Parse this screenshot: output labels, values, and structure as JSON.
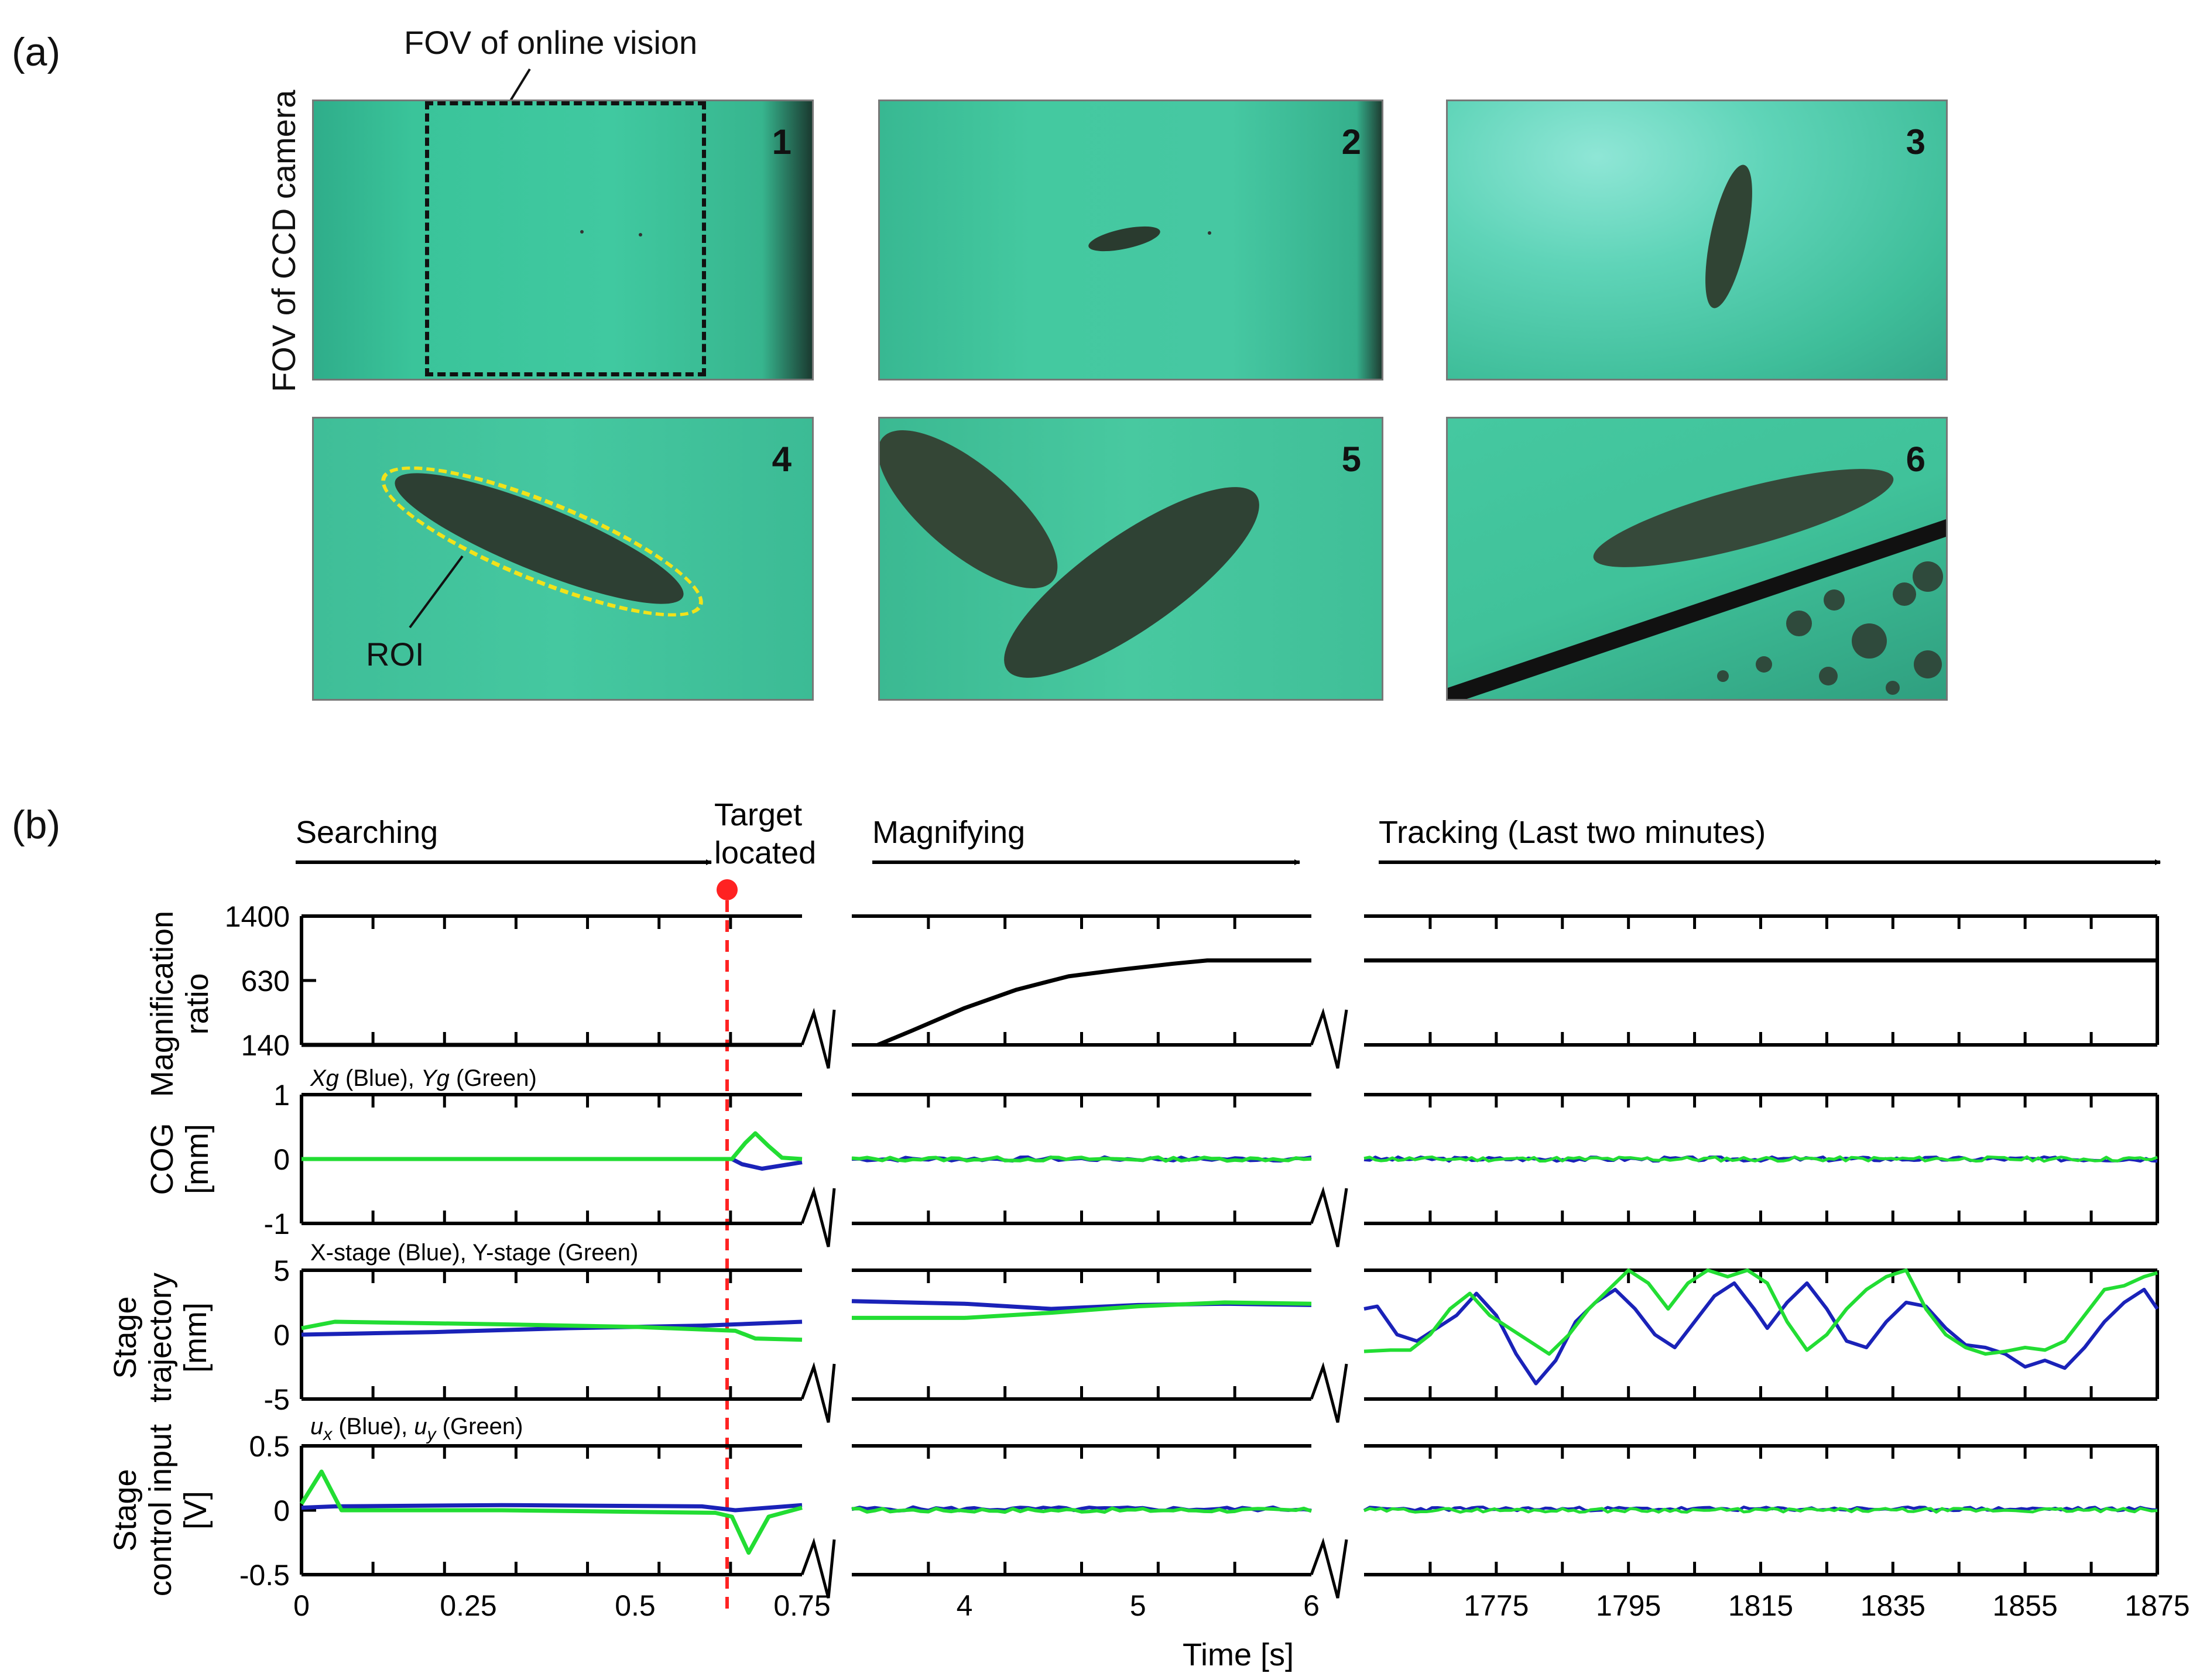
{
  "figure": {
    "panel_a_label": "(a)",
    "panel_b_label": "(b)"
  },
  "panel_a": {
    "fov_online_vision": "FOV of online vision",
    "fov_ccd_camera": "FOV of CCD camera",
    "roi_label": "ROI",
    "frames": [
      {
        "number": "1",
        "description": "empty field with dashed online vision FOV box"
      },
      {
        "number": "2",
        "description": "small paramecium far away"
      },
      {
        "number": "3",
        "description": "paramecium closer, vertical"
      },
      {
        "number": "4",
        "description": "paramecium magnified with ROI ellipse"
      },
      {
        "number": "5",
        "description": "two paramecia"
      },
      {
        "number": "6",
        "description": "paramecium near dark edge with droplets"
      }
    ]
  },
  "panel_b": {
    "phases": {
      "searching": "Searching",
      "target_line1": "Target",
      "target_line2": "located",
      "magnifying": "Magnifying",
      "tracking": "Tracking (Last two minutes)"
    },
    "xlabel": "Time [s]",
    "rows": [
      {
        "ylabel_line1": "Magnification",
        "ylabel_line2": "ratio",
        "legend": "",
        "ticks": [
          "1400",
          "630",
          "140"
        ]
      },
      {
        "ylabel_line1": "COG",
        "ylabel_line2": "[mm]",
        "legend_parts": [
          "Xg",
          " (Blue), ",
          "Yg",
          " (Green)"
        ],
        "ticks": [
          "1",
          "0",
          "-1"
        ]
      },
      {
        "ylabel_line1": "Stage",
        "ylabel_line2": "trajectory",
        "ylabel_line3": "[mm]",
        "legend": "X-stage (Blue), Y-stage (Green)",
        "ticks": [
          "5",
          "0",
          "-5"
        ]
      },
      {
        "ylabel_line1": "Stage",
        "ylabel_line2": "control input",
        "ylabel_line3": "[V]",
        "legend_parts": [
          "u",
          "x",
          " (Blue), ",
          "u",
          "y",
          " (Green)"
        ],
        "ticks": [
          "0.5",
          "0",
          "-0.5"
        ]
      }
    ],
    "x_segments": [
      {
        "ticks": [
          "0",
          "0.25",
          "0.5",
          "0.75"
        ]
      },
      {
        "ticks": [
          "4",
          "5",
          "6"
        ]
      },
      {
        "ticks": [
          "1775",
          "1795",
          "1815",
          "1835",
          "1855",
          "1875"
        ]
      }
    ],
    "colors": {
      "blue": "#1a22b8",
      "green": "#22dd33",
      "marker": "#ff2222",
      "black": "#000000"
    }
  },
  "chart_data": [
    {
      "type": "line",
      "title": "Magnification ratio",
      "ylabel": "Magnification ratio",
      "yticks": [
        140,
        630,
        1400
      ],
      "series": [
        {
          "name": "searching",
          "x": [
            0,
            0.75
          ],
          "y": [
            140,
            140
          ]
        },
        {
          "name": "magnifying",
          "x": [
            3.5,
            3.7,
            4.0,
            4.3,
            4.6,
            4.9,
            5.2,
            5.4,
            6
          ],
          "y": [
            140,
            250,
            420,
            560,
            680,
            760,
            830,
            870,
            870
          ]
        },
        {
          "name": "tracking",
          "x": [
            1755,
            1875
          ],
          "y": [
            870,
            870
          ]
        }
      ]
    },
    {
      "type": "line",
      "title": "COG",
      "ylabel": "COG [mm]",
      "ylim": [
        -1,
        1
      ],
      "series": [
        {
          "name": "Xg",
          "color": "blue",
          "note": "near zero, small negative dip after target located (~-0.15 at 0.69 s)"
        },
        {
          "name": "Yg",
          "color": "green",
          "note": "zero, peak ~0.4 at 0.68 s after target located, then near zero"
        }
      ]
    },
    {
      "type": "line",
      "title": "Stage trajectory",
      "ylabel": "Stage trajectory [mm]",
      "ylim": [
        -5,
        5
      ],
      "series": [
        {
          "name": "X-stage",
          "color": "blue",
          "note": "searching 0 to ~1; magnifying ~2.5 to ~2.3; tracking oscillates about -4 to 4"
        },
        {
          "name": "Y-stage",
          "color": "green",
          "note": "searching ~1 to ~-0.5; magnifying ~1.3 to ~2.4; tracking oscillates about -1.5 to 5"
        }
      ]
    },
    {
      "type": "line",
      "title": "Stage control input",
      "ylabel": "Stage control input [V]",
      "ylim": [
        -0.5,
        0.5
      ],
      "series": [
        {
          "name": "ux",
          "color": "blue",
          "note": "near zero, ~0.03"
        },
        {
          "name": "uy",
          "color": "green",
          "note": "spike ~0.3 at 0.03 s, dip ~-0.33 at 0.67 s, otherwise near zero"
        }
      ]
    }
  ]
}
